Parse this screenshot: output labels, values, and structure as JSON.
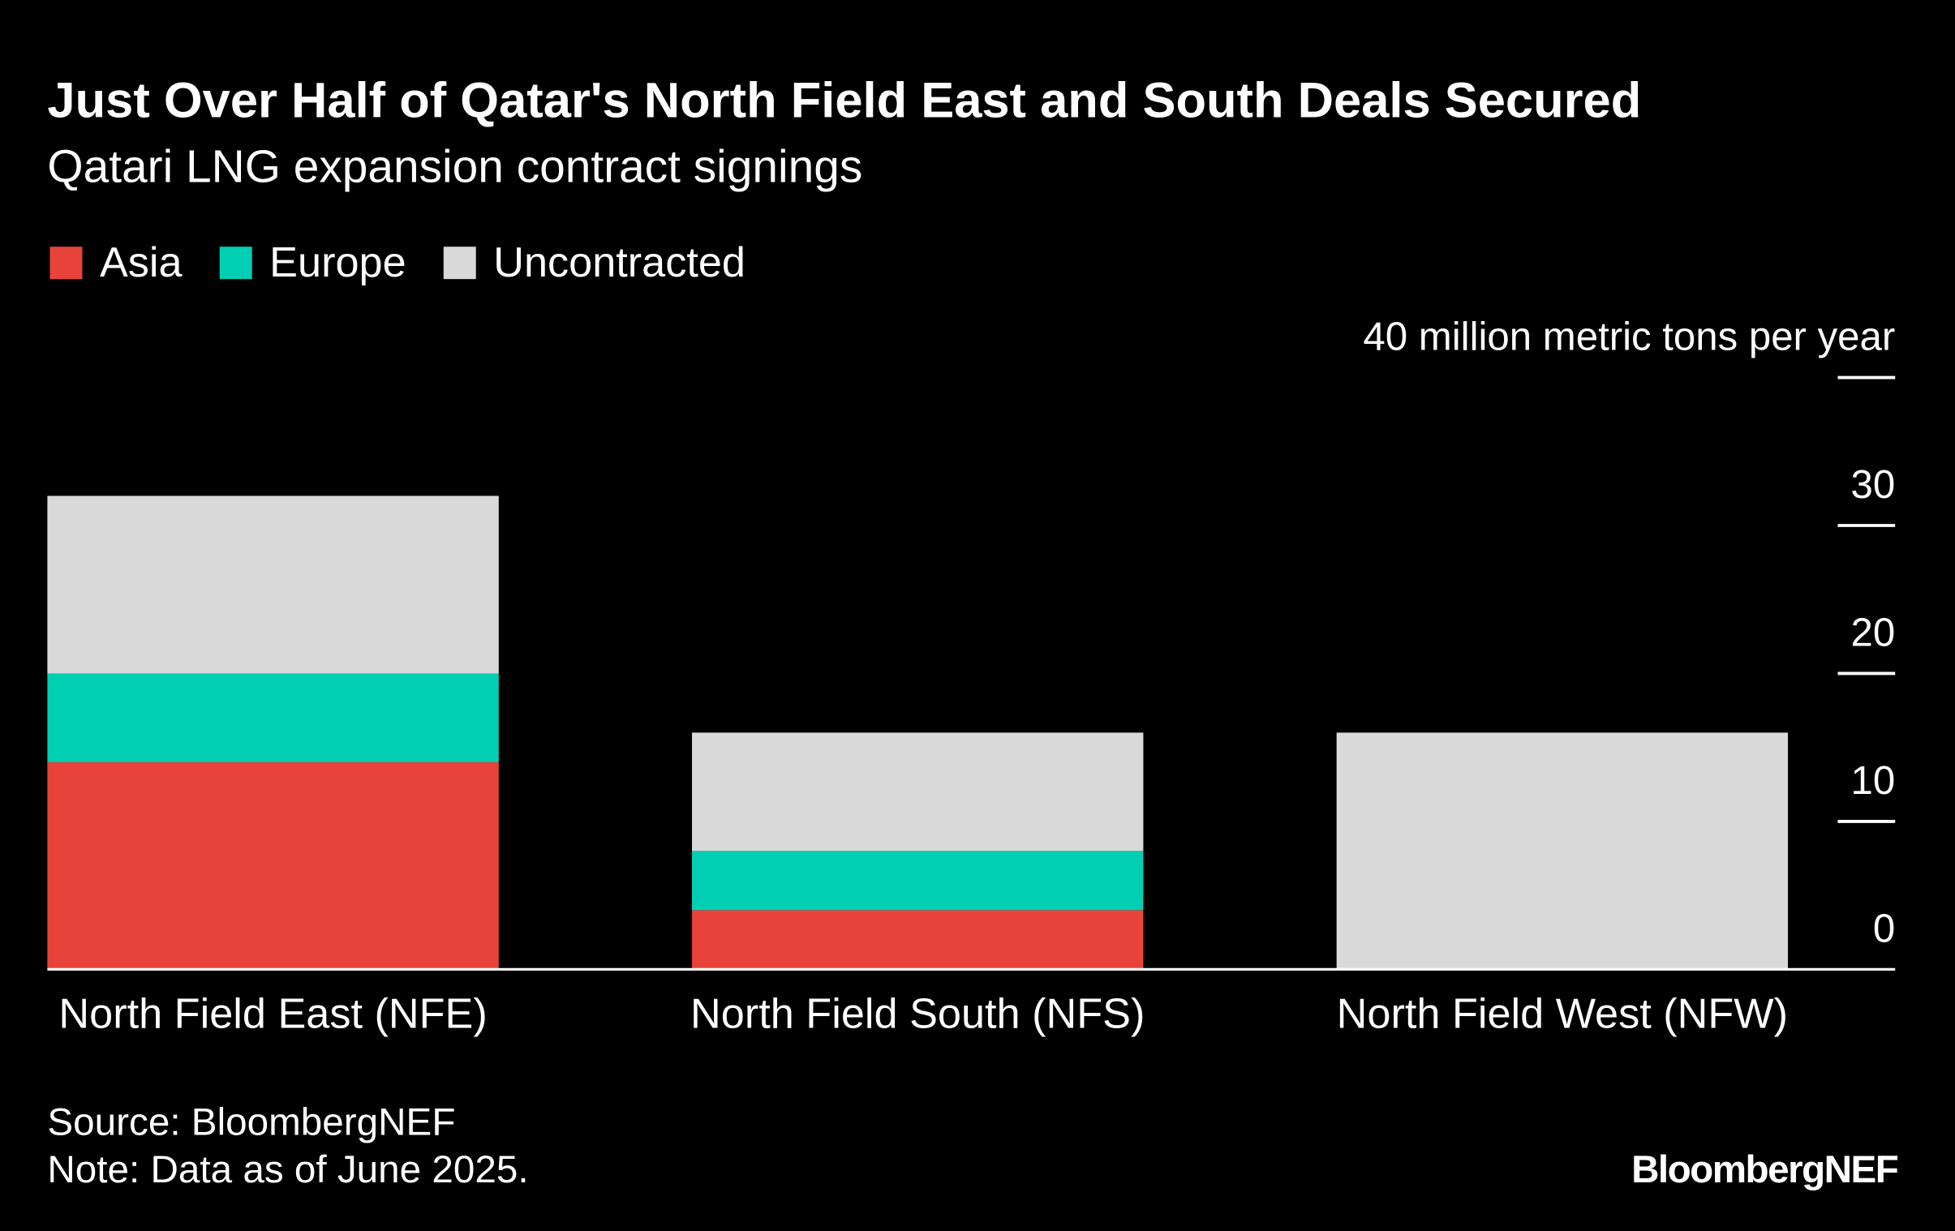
{
  "chart_data": {
    "type": "stacked_bar",
    "title": "Just Over Half of Qatar's North Field East and South Deals Secured",
    "subtitle": "Qatari LNG expansion contract signings",
    "categories": [
      "North Field East (NFE)",
      "North Field South (NFS)",
      "North Field West (NFW)"
    ],
    "series": [
      {
        "name": "Asia",
        "color": "#e8433a",
        "values": [
          14,
          4,
          0
        ]
      },
      {
        "name": "Europe",
        "color": "#00cfb4",
        "values": [
          6,
          4,
          0
        ]
      },
      {
        "name": "Uncontracted",
        "color": "#d9d9d9",
        "values": [
          12,
          8,
          16
        ]
      }
    ],
    "ylim": [
      0,
      40
    ],
    "yticks": [
      0,
      10,
      20,
      30,
      {
        "value": 40,
        "label": "40 million metric tons per year"
      }
    ],
    "legend": "top-left",
    "source": "Source: BloombergNEF",
    "note": "Note: Data as of June 2025.",
    "logo": "BloombergNEF"
  }
}
